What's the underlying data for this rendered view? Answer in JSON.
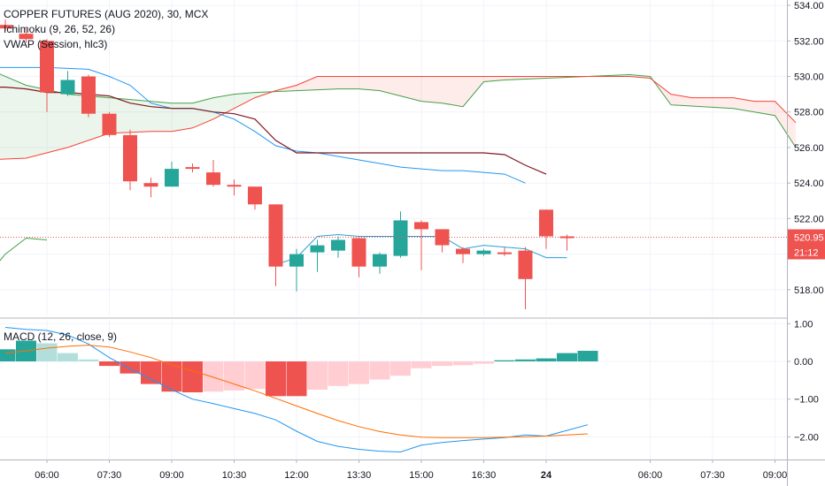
{
  "header": {
    "title": "COPPER FUTURES (AUG 2020), 30, MCX",
    "indicator_ichimoku": "Ichimoku (9, 26, 52, 26)",
    "indicator_vwap": "VWAP (Session, hlc3)",
    "indicator_macd": "MACD (12, 26, close, 9)"
  },
  "colors": {
    "up": "#26a69a",
    "down": "#ef5350",
    "hist_up_strong": "#26a69a",
    "hist_up_weak": "#b2dfdb",
    "hist_down_strong": "#ef5350",
    "hist_down_weak": "#ffcdd2",
    "macd_line": "#2196f3",
    "signal_line": "#ff6d00",
    "ichimoku_conversion": "#2196f3",
    "ichimoku_base": "#801922",
    "ichimoku_span_a": "#43a047",
    "ichimoku_span_b": "#f44336",
    "vwap": "#3179f5",
    "cloud_bull": "rgba(67,160,71,0.10)",
    "cloud_bear": "rgba(244,67,54,0.10)"
  },
  "chart_data": [
    {
      "type": "candlestick",
      "title": "COPPER FUTURES (AUG 2020), 30, MCX",
      "ylim": [
        516.5,
        534.3
      ],
      "y_ticks": [
        "534.00",
        "532.00",
        "530.00",
        "528.00",
        "526.00",
        "524.00",
        "522.00",
        "520.00",
        "518.00"
      ],
      "x_labels": [
        "06:00",
        "07:30",
        "09:00",
        "10:30",
        "12:00",
        "13:30",
        "15:00",
        "16:30",
        "24",
        "06:00",
        "07:30",
        "09:00"
      ],
      "last_price": "520.95",
      "countdown": "21:12",
      "candles": [
        {
          "o": 532.9,
          "h": 533.2,
          "l": 532.6,
          "c": 532.7
        },
        {
          "o": 532.4,
          "h": 532.7,
          "l": 531.9,
          "c": 532.1
        },
        {
          "o": 532.0,
          "h": 532.1,
          "l": 528.0,
          "c": 529.1
        },
        {
          "o": 529.0,
          "h": 530.3,
          "l": 528.9,
          "c": 529.8
        },
        {
          "o": 530.0,
          "h": 530.1,
          "l": 527.7,
          "c": 527.9
        },
        {
          "o": 527.9,
          "h": 528.0,
          "l": 526.6,
          "c": 526.7
        },
        {
          "o": 526.7,
          "h": 527.0,
          "l": 523.6,
          "c": 524.1
        },
        {
          "o": 524.0,
          "h": 524.3,
          "l": 523.2,
          "c": 523.8
        },
        {
          "o": 523.8,
          "h": 525.2,
          "l": 523.8,
          "c": 524.8
        },
        {
          "o": 524.9,
          "h": 525.1,
          "l": 524.6,
          "c": 524.8
        },
        {
          "o": 524.6,
          "h": 525.3,
          "l": 523.8,
          "c": 523.9
        },
        {
          "o": 523.9,
          "h": 524.2,
          "l": 523.3,
          "c": 523.8
        },
        {
          "o": 523.8,
          "h": 523.8,
          "l": 522.5,
          "c": 522.8
        },
        {
          "o": 522.8,
          "h": 522.8,
          "l": 518.2,
          "c": 519.3
        },
        {
          "o": 519.3,
          "h": 520.3,
          "l": 517.9,
          "c": 520.0
        },
        {
          "o": 520.1,
          "h": 520.8,
          "l": 519.0,
          "c": 520.5
        },
        {
          "o": 520.2,
          "h": 521.0,
          "l": 519.8,
          "c": 520.8
        },
        {
          "o": 520.9,
          "h": 521.0,
          "l": 518.7,
          "c": 519.3
        },
        {
          "o": 519.3,
          "h": 520.1,
          "l": 518.9,
          "c": 520.0
        },
        {
          "o": 519.9,
          "h": 522.4,
          "l": 519.8,
          "c": 521.9
        },
        {
          "o": 521.8,
          "h": 521.9,
          "l": 519.1,
          "c": 521.4
        },
        {
          "o": 521.4,
          "h": 521.4,
          "l": 520.1,
          "c": 520.5
        },
        {
          "o": 520.3,
          "h": 520.4,
          "l": 519.5,
          "c": 520.0
        },
        {
          "o": 520.0,
          "h": 520.3,
          "l": 519.9,
          "c": 520.2
        },
        {
          "o": 520.1,
          "h": 520.4,
          "l": 519.9,
          "c": 520.0
        },
        {
          "o": 520.2,
          "h": 520.4,
          "l": 516.9,
          "c": 518.6
        },
        {
          "o": 522.5,
          "h": 522.5,
          "l": 520.3,
          "c": 521.0
        },
        {
          "o": 521.0,
          "h": 521.1,
          "l": 520.2,
          "c": 520.9
        }
      ],
      "ichimoku": {
        "conversion_line": [
          [
            -1,
            530.5
          ],
          [
            2,
            530.5
          ],
          [
            4,
            530.4
          ],
          [
            5,
            530.0
          ],
          [
            6,
            529.5
          ],
          [
            7,
            528.5
          ],
          [
            8,
            528.2
          ],
          [
            9,
            528.2
          ],
          [
            10,
            528.0
          ],
          [
            11,
            527.6
          ],
          [
            12,
            526.9
          ],
          [
            13,
            526.1
          ],
          [
            14,
            525.8
          ],
          [
            15,
            525.7
          ],
          [
            16,
            525.5
          ],
          [
            17,
            525.3
          ],
          [
            18,
            525.1
          ],
          [
            19,
            524.9
          ],
          [
            20,
            524.8
          ],
          [
            21,
            524.7
          ],
          [
            22,
            524.7
          ],
          [
            23,
            524.6
          ],
          [
            24,
            524.5
          ],
          [
            25,
            524.0
          ]
        ],
        "base_line": [
          [
            -1,
            529.4
          ],
          [
            0,
            529.4
          ],
          [
            1,
            529.3
          ],
          [
            2,
            529.1
          ],
          [
            3,
            529.1
          ],
          [
            4,
            529.0
          ],
          [
            5,
            528.9
          ],
          [
            6,
            528.5
          ],
          [
            7,
            528.3
          ],
          [
            8,
            528.2
          ],
          [
            9,
            528.2
          ],
          [
            10,
            528.0
          ],
          [
            11,
            527.9
          ],
          [
            12,
            527.6
          ],
          [
            13,
            526.4
          ],
          [
            14,
            525.7
          ],
          [
            15,
            525.7
          ],
          [
            16,
            525.7
          ],
          [
            17,
            525.7
          ],
          [
            18,
            525.7
          ],
          [
            19,
            525.7
          ],
          [
            20,
            525.7
          ],
          [
            21,
            525.7
          ],
          [
            22,
            525.7
          ],
          [
            23,
            525.7
          ],
          [
            24,
            525.6
          ],
          [
            25,
            525.0
          ],
          [
            26,
            524.5
          ]
        ],
        "lagging_span": [
          [
            -1,
            518.6
          ],
          [
            0,
            520.0
          ],
          [
            1,
            520.9
          ],
          [
            2,
            520.8
          ]
        ],
        "span_a": [
          [
            -1,
            530.5
          ],
          [
            1,
            529.5
          ],
          [
            3,
            529.0
          ],
          [
            5,
            528.8
          ],
          [
            8,
            528.5
          ],
          [
            9,
            528.5
          ],
          [
            10,
            528.8
          ],
          [
            11,
            529.0
          ],
          [
            12,
            529.1
          ],
          [
            14,
            529.2
          ],
          [
            16,
            529.3
          ],
          [
            17,
            529.3
          ],
          [
            18,
            529.2
          ],
          [
            20,
            528.6
          ],
          [
            21,
            528.5
          ],
          [
            22,
            528.3
          ],
          [
            23,
            529.7
          ],
          [
            24,
            529.8
          ],
          [
            26,
            529.9
          ],
          [
            28,
            530.0
          ],
          [
            30,
            530.1
          ],
          [
            31,
            530.0
          ],
          [
            32,
            528.4
          ],
          [
            35,
            528.2
          ],
          [
            37,
            527.8
          ],
          [
            38,
            526.0
          ]
        ],
        "span_b": [
          [
            -1,
            525.3
          ],
          [
            1,
            525.4
          ],
          [
            3,
            526.0
          ],
          [
            5,
            526.8
          ],
          [
            7,
            526.9
          ],
          [
            8,
            526.9
          ],
          [
            9,
            527.1
          ],
          [
            10,
            527.6
          ],
          [
            11,
            528.2
          ],
          [
            12,
            528.8
          ],
          [
            13,
            529.2
          ],
          [
            14,
            529.5
          ],
          [
            15,
            530.0
          ],
          [
            30,
            530.0
          ],
          [
            31,
            529.9
          ],
          [
            32,
            529.0
          ],
          [
            33,
            528.8
          ],
          [
            35,
            528.8
          ],
          [
            36,
            528.6
          ],
          [
            37,
            528.6
          ],
          [
            38,
            527.4
          ]
        ]
      },
      "vwap": [
        [
          13,
          519.4
        ],
        [
          14,
          519.8
        ],
        [
          15,
          521.0
        ],
        [
          16,
          521.1
        ],
        [
          17,
          521.0
        ],
        [
          18,
          521.0
        ],
        [
          19,
          521.0
        ],
        [
          20,
          521.0
        ],
        [
          21,
          521.0
        ],
        [
          22,
          520.3
        ],
        [
          23,
          520.5
        ],
        [
          24,
          520.4
        ],
        [
          25,
          520.3
        ],
        [
          26,
          519.8
        ],
        [
          27,
          519.8
        ]
      ]
    },
    {
      "type": "macd",
      "title": "MACD (12, 26, close, 9)",
      "ylim": [
        -2.6,
        1.1
      ],
      "y_ticks": [
        "1.00",
        "0.00",
        "-1.00",
        "-2.00"
      ],
      "histogram": [
        0.32,
        0.55,
        0.48,
        0.22,
        0.05,
        -0.12,
        -0.32,
        -0.6,
        -0.8,
        -0.82,
        -0.8,
        -0.77,
        -0.73,
        -0.92,
        -0.92,
        -0.75,
        -0.65,
        -0.6,
        -0.48,
        -0.38,
        -0.18,
        -0.12,
        -0.1,
        -0.06,
        0.03,
        0.05,
        0.08,
        0.22,
        0.28
      ],
      "macd_line": [
        0.9,
        0.85,
        0.82,
        0.7,
        0.46,
        0.1,
        -0.2,
        -0.47,
        -0.75,
        -1.0,
        -1.12,
        -1.25,
        -1.38,
        -1.55,
        -1.85,
        -2.12,
        -2.25,
        -2.33,
        -2.38,
        -2.4,
        -2.22,
        -2.15,
        -2.1,
        -2.06,
        -2.02,
        -1.95,
        -1.98,
        -1.83,
        -1.68
      ],
      "signal_line": [
        0.22,
        0.28,
        0.35,
        0.4,
        0.43,
        0.38,
        0.25,
        0.1,
        -0.09,
        -0.25,
        -0.42,
        -0.6,
        -0.78,
        -0.98,
        -1.18,
        -1.38,
        -1.57,
        -1.73,
        -1.86,
        -1.95,
        -2.01,
        -2.02,
        -2.02,
        -2.02,
        -2.01,
        -2.0,
        -1.98,
        -1.95,
        -1.92
      ]
    }
  ]
}
